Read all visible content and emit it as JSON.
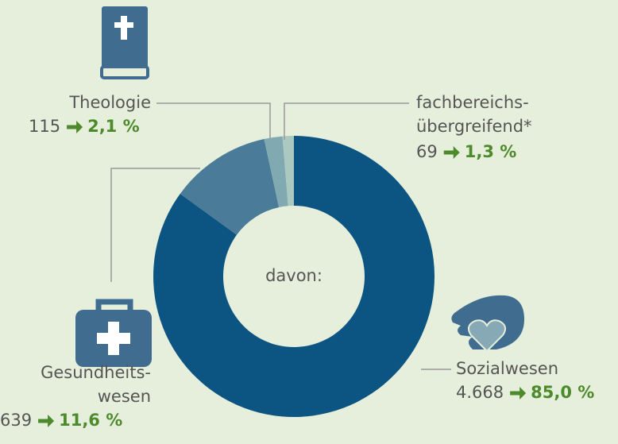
{
  "chart_data": {
    "type": "donut",
    "center_label": "davon:",
    "categories": [
      [
        "Sozialwesen"
      ],
      [
        "Gesundheits-",
        "wesen"
      ],
      [
        "Theologie"
      ],
      [
        "fachbereichs-",
        "übergreifend*"
      ]
    ],
    "counts": [
      4668,
      639,
      115,
      69
    ],
    "count_labels": [
      "4.668",
      "639",
      "115",
      "69"
    ],
    "values": [
      85.0,
      11.6,
      2.1,
      1.3
    ],
    "value_labels": [
      "85,0 %",
      "11,6 %",
      "2,1 %",
      "1,3 %"
    ],
    "colors": [
      "#0c5481",
      "#4a7b98",
      "#80a9b1",
      "#abc9c1"
    ]
  }
}
